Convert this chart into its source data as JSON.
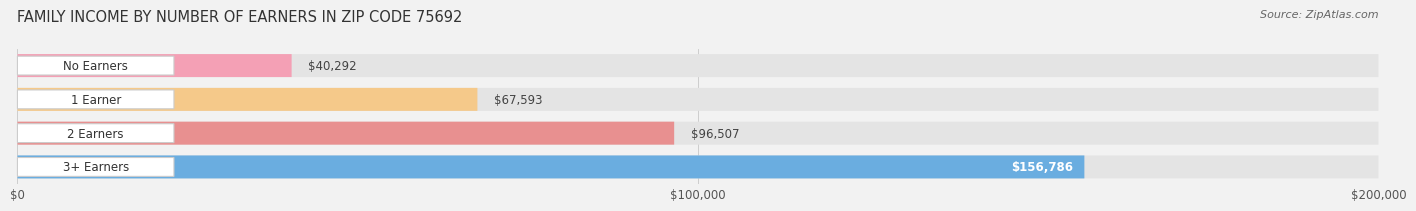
{
  "title": "FAMILY INCOME BY NUMBER OF EARNERS IN ZIP CODE 75692",
  "source": "Source: ZipAtlas.com",
  "categories": [
    "No Earners",
    "1 Earner",
    "2 Earners",
    "3+ Earners"
  ],
  "values": [
    40292,
    67593,
    96507,
    156786
  ],
  "bar_colors": [
    "#f4a0b5",
    "#f5c98a",
    "#e89090",
    "#6aade0"
  ],
  "value_labels": [
    "$40,292",
    "$67,593",
    "$96,507",
    "$156,786"
  ],
  "value_inside": [
    false,
    false,
    false,
    true
  ],
  "xmax": 200000,
  "xtick_labels": [
    "$0",
    "$100,000",
    "$200,000"
  ],
  "background_color": "#f2f2f2",
  "bar_background": "#e4e4e4",
  "title_fontsize": 10.5,
  "source_fontsize": 8,
  "label_fontsize": 8.5,
  "value_fontsize": 8.5
}
